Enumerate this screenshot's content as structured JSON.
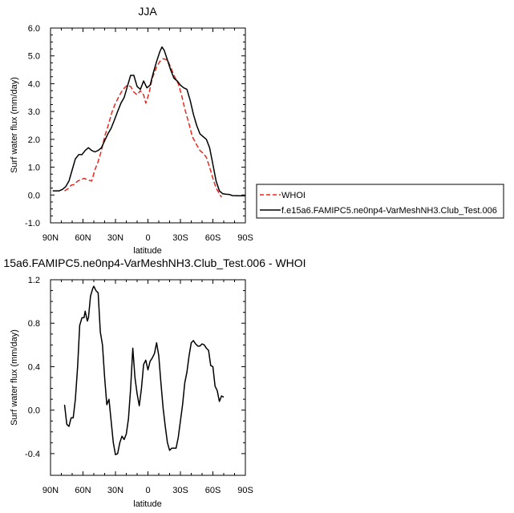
{
  "chart_data": [
    {
      "type": "line",
      "title": "JJA",
      "xlabel": "latitude",
      "ylabel": "Surf water flux (mm/day)",
      "xlim": [
        90,
        -90
      ],
      "ylim": [
        -1,
        6
      ],
      "xticks": [
        90,
        60,
        30,
        0,
        -30,
        -60,
        -90
      ],
      "xtick_labels": [
        "90N",
        "60N",
        "30N",
        "0",
        "30S",
        "60S",
        "90S"
      ],
      "yticks": [
        -1,
        0,
        1,
        2,
        3,
        4,
        5,
        6
      ],
      "ytick_labels": [
        "-1.0",
        "0.0",
        "1.0",
        "2.0",
        "3.0",
        "4.0",
        "5.0",
        "6.0"
      ],
      "legend": "right",
      "series": [
        {
          "name": "WHOI",
          "color": "#e8281e",
          "dash": true,
          "points": [
            [
              77,
              0.15
            ],
            [
              74,
              0.22
            ],
            [
              71,
              0.35
            ],
            [
              68,
              0.38
            ],
            [
              65,
              0.5
            ],
            [
              62,
              0.55
            ],
            [
              59,
              0.6
            ],
            [
              56,
              0.55
            ],
            [
              52,
              0.5
            ],
            [
              49,
              0.9
            ],
            [
              46,
              1.2
            ],
            [
              43,
              1.6
            ],
            [
              40,
              2.1
            ],
            [
              36,
              2.6
            ],
            [
              33,
              3.0
            ],
            [
              30,
              3.3
            ],
            [
              26,
              3.6
            ],
            [
              23,
              3.8
            ],
            [
              19,
              3.95
            ],
            [
              16,
              3.9
            ],
            [
              13,
              3.7
            ],
            [
              10,
              3.6
            ],
            [
              7,
              3.75
            ],
            [
              4,
              3.6
            ],
            [
              2,
              3.3
            ],
            [
              -1,
              3.65
            ],
            [
              -4,
              4.2
            ],
            [
              -8,
              4.6
            ],
            [
              -11,
              4.8
            ],
            [
              -14,
              4.9
            ],
            [
              -18,
              4.85
            ],
            [
              -21,
              4.6
            ],
            [
              -24,
              4.3
            ],
            [
              -28,
              4.0
            ],
            [
              -31,
              3.6
            ],
            [
              -34,
              3.1
            ],
            [
              -38,
              2.55
            ],
            [
              -41,
              2.1
            ],
            [
              -45,
              1.8
            ],
            [
              -48,
              1.6
            ],
            [
              -51,
              1.5
            ],
            [
              -54,
              1.35
            ],
            [
              -57,
              1.0
            ],
            [
              -60,
              0.6
            ],
            [
              -63,
              0.25
            ],
            [
              -66,
              0.05
            ],
            [
              -68,
              -0.08
            ]
          ]
        },
        {
          "name": "f.e15a6.FAMIPC5.ne0np4-VarMeshNH3.Club_Test.006",
          "color": "#000000",
          "dash": false,
          "points": [
            [
              88,
              0.15
            ],
            [
              85,
              0.15
            ],
            [
              82,
              0.15
            ],
            [
              79,
              0.2
            ],
            [
              76,
              0.3
            ],
            [
              73,
              0.5
            ],
            [
              70,
              0.9
            ],
            [
              67,
              1.3
            ],
            [
              64,
              1.45
            ],
            [
              61,
              1.45
            ],
            [
              58,
              1.6
            ],
            [
              55,
              1.7
            ],
            [
              52,
              1.6
            ],
            [
              49,
              1.55
            ],
            [
              46,
              1.6
            ],
            [
              43,
              1.7
            ],
            [
              40,
              1.95
            ],
            [
              37,
              2.2
            ],
            [
              34,
              2.4
            ],
            [
              31,
              2.7
            ],
            [
              28,
              3.0
            ],
            [
              25,
              3.3
            ],
            [
              22,
              3.5
            ],
            [
              19,
              3.9
            ],
            [
              16,
              4.3
            ],
            [
              13,
              4.3
            ],
            [
              10,
              3.9
            ],
            [
              7,
              3.8
            ],
            [
              4,
              4.1
            ],
            [
              1,
              3.85
            ],
            [
              -2,
              3.95
            ],
            [
              -5,
              4.4
            ],
            [
              -8,
              4.8
            ],
            [
              -11,
              5.15
            ],
            [
              -13,
              5.32
            ],
            [
              -15,
              5.2
            ],
            [
              -18,
              4.85
            ],
            [
              -21,
              4.5
            ],
            [
              -24,
              4.2
            ],
            [
              -27,
              4.1
            ],
            [
              -30,
              3.95
            ],
            [
              -33,
              3.85
            ],
            [
              -36,
              3.8
            ],
            [
              -39,
              3.4
            ],
            [
              -42,
              2.9
            ],
            [
              -45,
              2.5
            ],
            [
              -48,
              2.2
            ],
            [
              -51,
              2.1
            ],
            [
              -54,
              2.0
            ],
            [
              -57,
              1.7
            ],
            [
              -60,
              1.1
            ],
            [
              -63,
              0.5
            ],
            [
              -66,
              0.15
            ],
            [
              -69,
              0.05
            ],
            [
              -72,
              0.03
            ],
            [
              -75,
              0.02
            ],
            [
              -78,
              -0.02
            ],
            [
              -84,
              -0.03
            ],
            [
              -90,
              -0.03
            ]
          ]
        }
      ]
    },
    {
      "type": "line",
      "title": "15a6.FAMIPC5.ne0np4-VarMeshNH3.Club_Test.006 - WHOI",
      "xlabel": "latitude",
      "ylabel": "Surf water flux (mm/day)",
      "xlim": [
        90,
        -90
      ],
      "ylim": [
        -0.6,
        1.2
      ],
      "xticks": [
        90,
        60,
        30,
        0,
        -30,
        -60,
        -90
      ],
      "xtick_labels": [
        "90N",
        "60N",
        "30N",
        "0",
        "30S",
        "60S",
        "90S"
      ],
      "yticks": [
        -0.4,
        0.0,
        0.4,
        0.8,
        1.2
      ],
      "ytick_labels": [
        "-0.4",
        "0.0",
        "0.4",
        "0.8",
        "1.2"
      ],
      "series": [
        {
          "color": "#000000",
          "points": [
            [
              77,
              0.05
            ],
            [
              75,
              -0.13
            ],
            [
              73,
              -0.15
            ],
            [
              71,
              -0.07
            ],
            [
              69,
              -0.07
            ],
            [
              67,
              0.1
            ],
            [
              65,
              0.4
            ],
            [
              63,
              0.78
            ],
            [
              61,
              0.85
            ],
            [
              59,
              0.85
            ],
            [
              58,
              0.91
            ],
            [
              56,
              0.82
            ],
            [
              55,
              0.85
            ],
            [
              53,
              1.05
            ],
            [
              51,
              1.12
            ],
            [
              50,
              1.14
            ],
            [
              48,
              1.1
            ],
            [
              46,
              1.08
            ],
            [
              44,
              0.72
            ],
            [
              42,
              0.6
            ],
            [
              40,
              0.3
            ],
            [
              38,
              0.05
            ],
            [
              36,
              0.1
            ],
            [
              34,
              -0.1
            ],
            [
              32,
              -0.3
            ],
            [
              30,
              -0.41
            ],
            [
              28,
              -0.4
            ],
            [
              26,
              -0.3
            ],
            [
              24,
              -0.24
            ],
            [
              22,
              -0.27
            ],
            [
              20,
              -0.22
            ],
            [
              18,
              -0.08
            ],
            [
              16,
              0.2
            ],
            [
              14,
              0.57
            ],
            [
              12,
              0.3
            ],
            [
              10,
              0.15
            ],
            [
              8,
              0.04
            ],
            [
              6,
              0.2
            ],
            [
              4,
              0.42
            ],
            [
              2,
              0.46
            ],
            [
              0,
              0.37
            ],
            [
              -2,
              0.45
            ],
            [
              -4,
              0.48
            ],
            [
              -6,
              0.52
            ],
            [
              -8,
              0.62
            ],
            [
              -10,
              0.5
            ],
            [
              -12,
              0.25
            ],
            [
              -14,
              0.02
            ],
            [
              -16,
              -0.15
            ],
            [
              -18,
              -0.3
            ],
            [
              -20,
              -0.37
            ],
            [
              -22,
              -0.35
            ],
            [
              -24,
              -0.35
            ],
            [
              -26,
              -0.35
            ],
            [
              -28,
              -0.25
            ],
            [
              -30,
              -0.1
            ],
            [
              -32,
              0.05
            ],
            [
              -34,
              0.25
            ],
            [
              -36,
              0.35
            ],
            [
              -38,
              0.5
            ],
            [
              -40,
              0.62
            ],
            [
              -42,
              0.64
            ],
            [
              -44,
              0.61
            ],
            [
              -46,
              0.59
            ],
            [
              -48,
              0.59
            ],
            [
              -50,
              0.61
            ],
            [
              -52,
              0.6
            ],
            [
              -54,
              0.57
            ],
            [
              -56,
              0.55
            ],
            [
              -58,
              0.41
            ],
            [
              -60,
              0.4
            ],
            [
              -62,
              0.22
            ],
            [
              -64,
              0.18
            ],
            [
              -66,
              0.08
            ],
            [
              -68,
              0.13
            ],
            [
              -70,
              0.12
            ]
          ]
        }
      ]
    }
  ]
}
